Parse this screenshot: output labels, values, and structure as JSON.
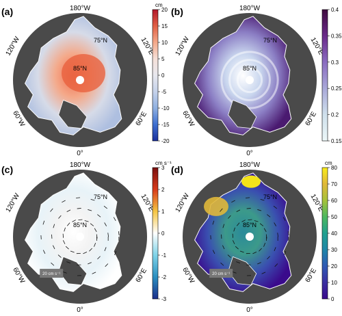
{
  "panels": [
    {
      "label": "(a)",
      "lon_top": "180°W",
      "lon_left": "120°W",
      "lon_right": "120°E",
      "lon_lower_left": "60°W",
      "lon_lower_right": "60°E",
      "lon_bottom": "0°",
      "lat_inner": "85°N",
      "lat_outer": "75°N",
      "colorbar": {
        "unit": "cm",
        "ticks": [
          "20",
          "15",
          "10",
          "5",
          "0",
          "-5",
          "-10",
          "-15",
          "-20"
        ],
        "stops": [
          "#b2182b",
          "#e06045",
          "#f4a98a",
          "#f5e0d8",
          "#e8e8ee",
          "#c5d2ea",
          "#8fb0e0",
          "#3d6fd0",
          "#1a2f9c"
        ]
      }
    },
    {
      "label": "(b)",
      "lon_top": "180°W",
      "lon_left": "120°W",
      "lon_right": "120°E",
      "lon_lower_left": "60°W",
      "lon_lower_right": "60°E",
      "lon_bottom": "0°",
      "lat_inner": "85°N",
      "lat_outer": "75°N",
      "colorbar": {
        "unit": "",
        "ticks": [
          "0.4",
          "0.35",
          "0.3",
          "0.25",
          "0.2",
          "0.15"
        ],
        "stops": [
          "#3f0b3f",
          "#6a2a8a",
          "#8a6cc0",
          "#a9a8d8",
          "#cfe0ec",
          "#ecf7f8"
        ]
      }
    },
    {
      "label": "(c)",
      "lon_top": "180°W",
      "lon_left": "120°W",
      "lon_right": "120°E",
      "lon_lower_left": "60°W",
      "lon_lower_right": "60°E",
      "lon_bottom": "0°",
      "lat_inner": "85°N",
      "lat_outer": "75°N",
      "scale_label": "20 cm s⁻¹",
      "colorbar": {
        "unit": "cm s⁻¹",
        "ticks": [
          "3",
          "2",
          "1",
          "0",
          "-1",
          "-2",
          "-3"
        ],
        "stops": [
          "#7a1010",
          "#d83a1a",
          "#f5c542",
          "#ffffff",
          "#7fd3e8",
          "#2a8fc0",
          "#1a2d8a"
        ]
      }
    },
    {
      "label": "(d)",
      "lon_top": "180°W",
      "lon_left": "120°W",
      "lon_right": "120°E",
      "lon_lower_left": "60°W",
      "lon_lower_right": "60°E",
      "lon_bottom": "0°",
      "lat_inner": "85°N",
      "lat_outer": "75°N",
      "scale_label": "20 cm s⁻¹",
      "colorbar": {
        "unit": "cm",
        "ticks": [
          "80",
          "70",
          "60",
          "50",
          "40",
          "30",
          "20",
          "10",
          "0"
        ],
        "stops": [
          "#f9ec1c",
          "#e0b83a",
          "#a6c23a",
          "#4db85f",
          "#21a08f",
          "#1f86a8",
          "#2f5ab4",
          "#3a2fa0",
          "#3a0a8c"
        ]
      }
    }
  ]
}
